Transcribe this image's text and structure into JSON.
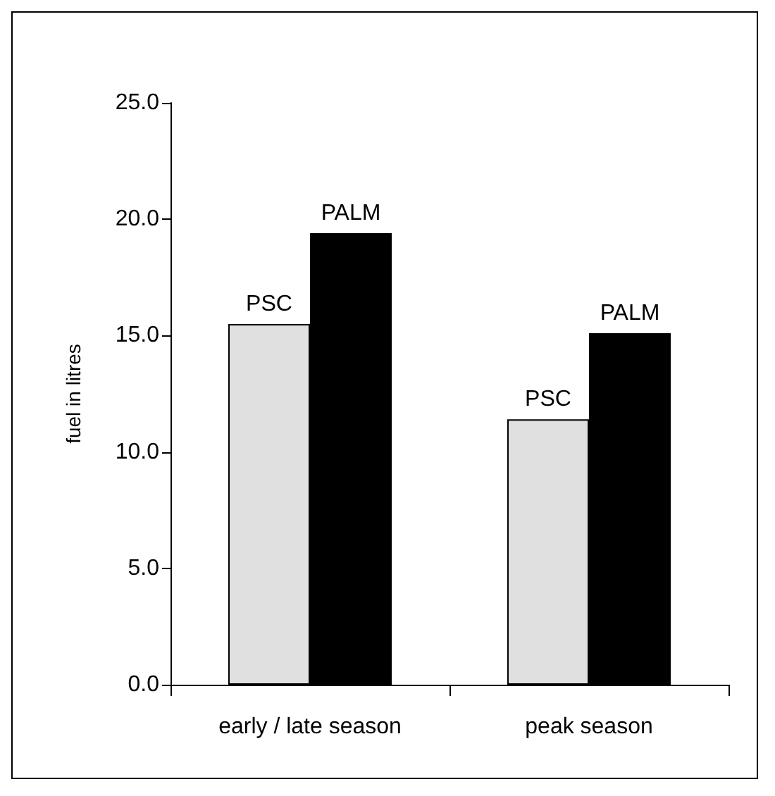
{
  "chart_data": {
    "type": "bar",
    "ylabel": "fuel in litres",
    "categories": [
      "early / late season",
      "peak season"
    ],
    "series": [
      {
        "name": "PSC",
        "color": "#e0e0e0",
        "values": [
          15.5,
          11.4
        ]
      },
      {
        "name": "PALM",
        "color": "#000000",
        "values": [
          19.4,
          15.1
        ]
      }
    ],
    "ylim": [
      0,
      25
    ],
    "yticks": [
      {
        "value": 0,
        "label": "0.0"
      },
      {
        "value": 5,
        "label": "5.0"
      },
      {
        "value": 10,
        "label": "10.0"
      },
      {
        "value": 15,
        "label": "15.0"
      },
      {
        "value": 20,
        "label": "20.0"
      },
      {
        "value": 25,
        "label": "25.0"
      }
    ],
    "grid": false,
    "legend": false
  }
}
